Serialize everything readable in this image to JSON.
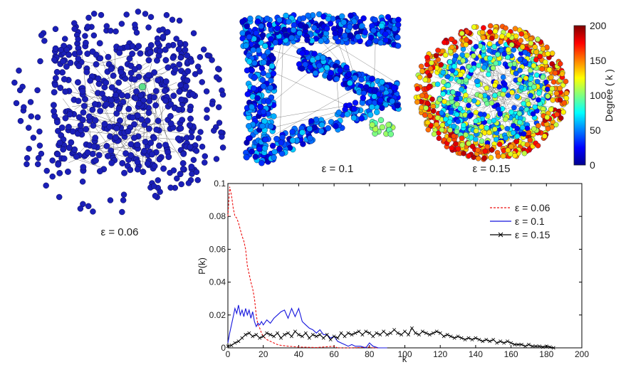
{
  "network_panels": [
    {
      "label": "ε = 0.06"
    },
    {
      "label": "ε = 0.1"
    },
    {
      "label": "ε = 0.15"
    }
  ],
  "colorbar": {
    "label": "Degree ( k )",
    "ticks": [
      "200",
      "150",
      "100",
      "50",
      "0"
    ],
    "range": [
      0,
      200
    ],
    "colormap": "jet"
  },
  "chart_data": {
    "type": "line",
    "xlabel": "k",
    "ylabel": "P(k)",
    "xlim": [
      0,
      200
    ],
    "ylim": [
      0,
      0.1
    ],
    "x_ticks": [
      "0",
      "20",
      "40",
      "60",
      "80",
      "100",
      "120",
      "140",
      "160",
      "180",
      "200"
    ],
    "y_ticks": [
      "0",
      "0.02",
      "0.04",
      "0.06",
      "0.08",
      "0.1"
    ],
    "legend_position": "top-right",
    "series": [
      {
        "name": "ε = 0.06",
        "color": "#ee1111",
        "style": "dashed",
        "points": [
          [
            0,
            0.08
          ],
          [
            1,
            0.098
          ],
          [
            2,
            0.093
          ],
          [
            3,
            0.085
          ],
          [
            4,
            0.08
          ],
          [
            5,
            0.079
          ],
          [
            6,
            0.076
          ],
          [
            7,
            0.072
          ],
          [
            8,
            0.068
          ],
          [
            9,
            0.065
          ],
          [
            10,
            0.06
          ],
          [
            11,
            0.05
          ],
          [
            12,
            0.045
          ],
          [
            13,
            0.04
          ],
          [
            14,
            0.036
          ],
          [
            15,
            0.03
          ],
          [
            16,
            0.02
          ],
          [
            17,
            0.014
          ],
          [
            18,
            0.012
          ],
          [
            19,
            0.009
          ],
          [
            20,
            0.007
          ],
          [
            22,
            0.005
          ],
          [
            24,
            0.004
          ],
          [
            26,
            0.003
          ],
          [
            28,
            0.002
          ],
          [
            30,
            0.0015
          ],
          [
            34,
            0.001
          ],
          [
            40,
            0.0005
          ],
          [
            50,
            0.0002
          ],
          [
            60,
            0.001
          ],
          [
            62,
            0
          ],
          [
            70,
            0
          ],
          [
            80,
            0.0005
          ],
          [
            82,
            0
          ],
          [
            90,
            0
          ]
        ]
      },
      {
        "name": "ε = 0.1",
        "color": "#1515dd",
        "style": "solid",
        "points": [
          [
            0,
            0.003
          ],
          [
            1,
            0.009
          ],
          [
            2,
            0.014
          ],
          [
            3,
            0.019
          ],
          [
            4,
            0.024
          ],
          [
            5,
            0.021
          ],
          [
            6,
            0.026
          ],
          [
            7,
            0.02
          ],
          [
            8,
            0.023
          ],
          [
            9,
            0.019
          ],
          [
            10,
            0.024
          ],
          [
            11,
            0.02
          ],
          [
            12,
            0.023
          ],
          [
            13,
            0.018
          ],
          [
            14,
            0.022
          ],
          [
            15,
            0.016
          ],
          [
            16,
            0.013
          ],
          [
            17,
            0.015
          ],
          [
            18,
            0.014
          ],
          [
            19,
            0.016
          ],
          [
            20,
            0.014
          ],
          [
            22,
            0.017
          ],
          [
            24,
            0.015
          ],
          [
            26,
            0.018
          ],
          [
            28,
            0.02
          ],
          [
            30,
            0.022
          ],
          [
            32,
            0.023
          ],
          [
            34,
            0.018
          ],
          [
            36,
            0.024
          ],
          [
            38,
            0.019
          ],
          [
            40,
            0.024
          ],
          [
            42,
            0.016
          ],
          [
            44,
            0.014
          ],
          [
            46,
            0.012
          ],
          [
            48,
            0.011
          ],
          [
            50,
            0.009
          ],
          [
            52,
            0.011
          ],
          [
            54,
            0.008
          ],
          [
            56,
            0.008
          ],
          [
            58,
            0.006
          ],
          [
            60,
            0.007
          ],
          [
            62,
            0.004
          ],
          [
            64,
            0.003
          ],
          [
            66,
            0.002
          ],
          [
            68,
            0.001
          ],
          [
            70,
            0.002
          ],
          [
            72,
            0.001
          ],
          [
            75,
            0.001
          ],
          [
            78,
            0
          ],
          [
            80,
            0.003
          ],
          [
            82,
            0.001
          ],
          [
            85,
            0
          ],
          [
            90,
            0
          ]
        ]
      },
      {
        "name": "ε = 0.15",
        "color": "#000000",
        "style": "solid-x",
        "points": [
          [
            0,
            0.001
          ],
          [
            2,
            0.0015
          ],
          [
            4,
            0.003
          ],
          [
            6,
            0.004
          ],
          [
            8,
            0.006
          ],
          [
            10,
            0.008
          ],
          [
            12,
            0.009
          ],
          [
            14,
            0.007
          ],
          [
            16,
            0.008
          ],
          [
            18,
            0.006
          ],
          [
            20,
            0.007
          ],
          [
            22,
            0.009
          ],
          [
            24,
            0.008
          ],
          [
            26,
            0.007
          ],
          [
            28,
            0.009
          ],
          [
            30,
            0.006
          ],
          [
            32,
            0.008
          ],
          [
            34,
            0.009
          ],
          [
            36,
            0.007
          ],
          [
            38,
            0.01
          ],
          [
            40,
            0.008
          ],
          [
            42,
            0.007
          ],
          [
            44,
            0.009
          ],
          [
            46,
            0.006
          ],
          [
            48,
            0.008
          ],
          [
            50,
            0.007
          ],
          [
            52,
            0.008
          ],
          [
            54,
            0.006
          ],
          [
            56,
            0.008
          ],
          [
            58,
            0.005
          ],
          [
            60,
            0.007
          ],
          [
            62,
            0.006
          ],
          [
            64,
            0.009
          ],
          [
            66,
            0.007
          ],
          [
            68,
            0.009
          ],
          [
            70,
            0.008
          ],
          [
            72,
            0.009
          ],
          [
            74,
            0.01
          ],
          [
            76,
            0.008
          ],
          [
            78,
            0.01
          ],
          [
            80,
            0.009
          ],
          [
            82,
            0.007
          ],
          [
            84,
            0.009
          ],
          [
            86,
            0.008
          ],
          [
            88,
            0.01
          ],
          [
            90,
            0.008
          ],
          [
            92,
            0.009
          ],
          [
            94,
            0.011
          ],
          [
            96,
            0.009
          ],
          [
            98,
            0.008
          ],
          [
            100,
            0.01
          ],
          [
            102,
            0.008
          ],
          [
            104,
            0.012
          ],
          [
            106,
            0.009
          ],
          [
            108,
            0.008
          ],
          [
            110,
            0.01
          ],
          [
            112,
            0.009
          ],
          [
            114,
            0.008
          ],
          [
            116,
            0.009
          ],
          [
            118,
            0.01
          ],
          [
            120,
            0.009
          ],
          [
            122,
            0.007
          ],
          [
            124,
            0.008
          ],
          [
            126,
            0.007
          ],
          [
            128,
            0.006
          ],
          [
            130,
            0.007
          ],
          [
            132,
            0.006
          ],
          [
            134,
            0.005
          ],
          [
            136,
            0.006
          ],
          [
            138,
            0.005
          ],
          [
            140,
            0.006
          ],
          [
            142,
            0.005
          ],
          [
            144,
            0.004
          ],
          [
            146,
            0.005
          ],
          [
            148,
            0.004
          ],
          [
            150,
            0.005
          ],
          [
            152,
            0.003
          ],
          [
            154,
            0.004
          ],
          [
            156,
            0.003
          ],
          [
            158,
            0.004
          ],
          [
            160,
            0.003
          ],
          [
            162,
            0.002
          ],
          [
            164,
            0.002
          ],
          [
            166,
            0.002
          ],
          [
            168,
            0.001
          ],
          [
            170,
            0.002
          ],
          [
            172,
            0.001
          ],
          [
            174,
            0.001
          ],
          [
            176,
            0.001
          ],
          [
            178,
            0.0005
          ],
          [
            180,
            0.001
          ],
          [
            182,
            0.0005
          ],
          [
            184,
            0
          ]
        ]
      }
    ]
  }
}
